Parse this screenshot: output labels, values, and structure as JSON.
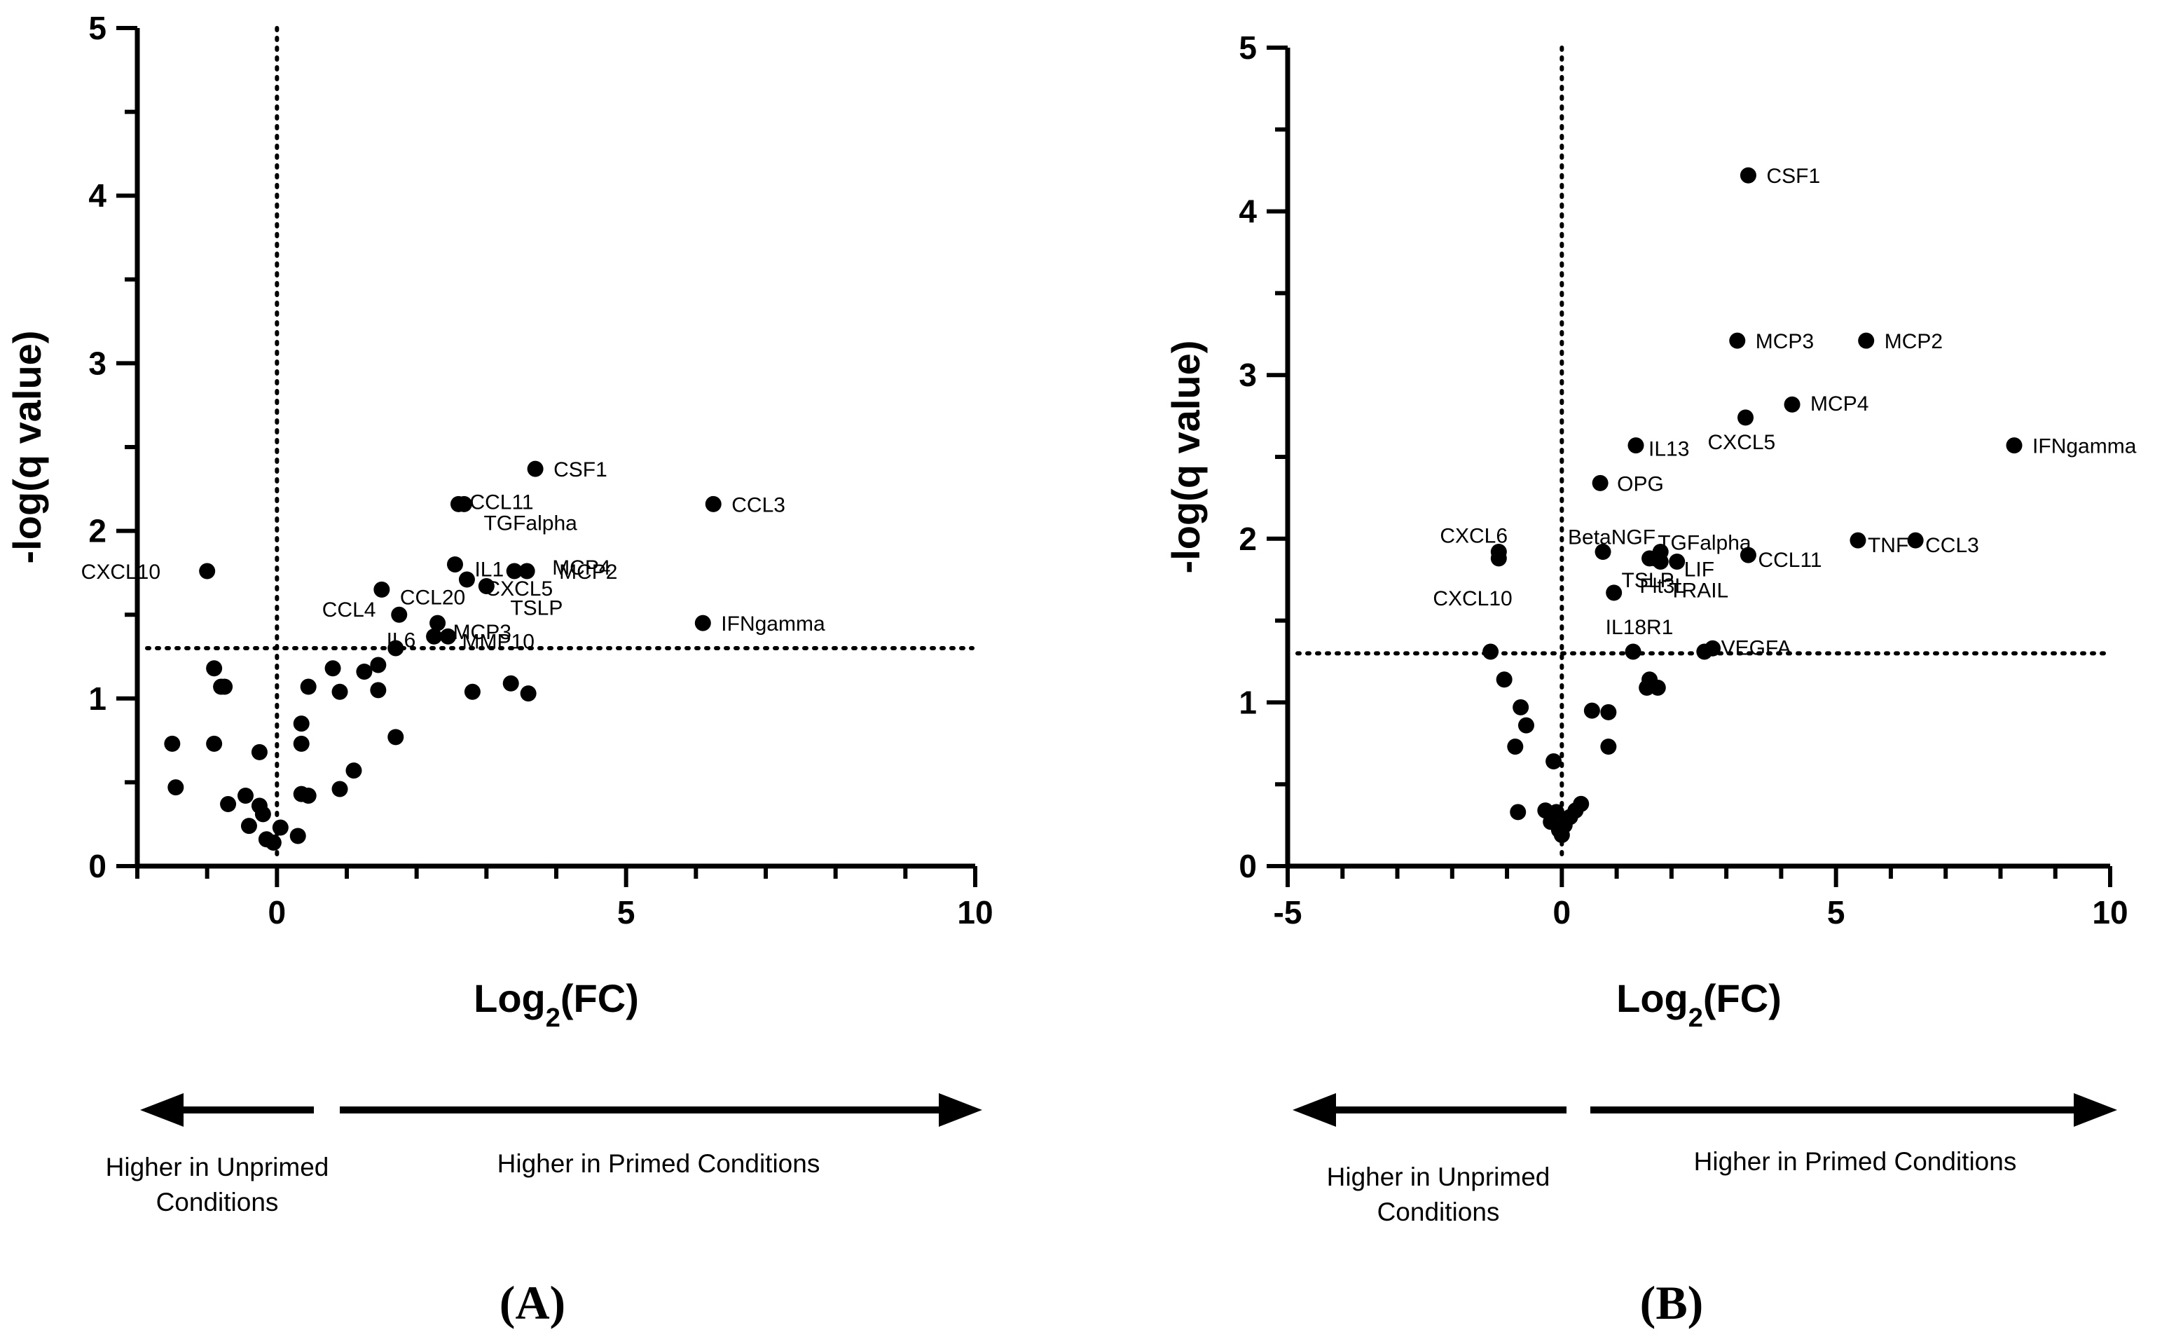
{
  "colors": {
    "ink": "#000000",
    "background": "#ffffff"
  },
  "chart_data": [
    {
      "type": "scatter",
      "panel": "(A)",
      "xlabel_main": "Log",
      "xlabel_sub": "2",
      "xlabel_tail": "(FC)",
      "ylabel": "-log(q value)",
      "xlim": [
        -2,
        10
      ],
      "ylim": [
        0,
        5
      ],
      "xticks": [
        0,
        5,
        10
      ],
      "yticks": [
        0,
        1,
        2,
        3,
        4,
        5
      ],
      "threshold_y": 1.3,
      "ref_x": 0,
      "arrow_left_text": [
        "Higher in Unprimed",
        "Conditions"
      ],
      "arrow_right_text": [
        "Higher in Primed Conditions"
      ],
      "points": [
        {
          "x": 3.7,
          "y": 2.37,
          "label": "CSF1"
        },
        {
          "x": 6.25,
          "y": 2.16,
          "label": "CCL3"
        },
        {
          "x": 2.6,
          "y": 2.16,
          "label": "CCL11"
        },
        {
          "x": 2.68,
          "y": 2.16,
          "label": "TGFalpha"
        },
        {
          "x": -1.0,
          "y": 1.76,
          "label": "CXCL10"
        },
        {
          "x": 2.55,
          "y": 1.8,
          "label": "IL1"
        },
        {
          "x": 3.4,
          "y": 1.76,
          "label": "MCP4"
        },
        {
          "x": 3.58,
          "y": 1.76,
          "label": "MCP2"
        },
        {
          "x": 2.72,
          "y": 1.71,
          "label": "CXCL5"
        },
        {
          "x": 3.0,
          "y": 1.67,
          "label": "TSLP"
        },
        {
          "x": 1.5,
          "y": 1.65,
          "label": "CCL20"
        },
        {
          "x": 1.75,
          "y": 1.5,
          "label": "CCL4"
        },
        {
          "x": 2.3,
          "y": 1.45,
          "label": "MCP3"
        },
        {
          "x": 6.1,
          "y": 1.45,
          "label": "IFNgamma"
        },
        {
          "x": 2.25,
          "y": 1.37,
          "label": "IL6"
        },
        {
          "x": 2.45,
          "y": 1.37,
          "label": "MMP10"
        },
        {
          "x": 1.7,
          "y": 1.3
        },
        {
          "x": 1.45,
          "y": 1.2
        },
        {
          "x": 1.25,
          "y": 1.16
        },
        {
          "x": 0.8,
          "y": 1.18
        },
        {
          "x": 0.45,
          "y": 1.07
        },
        {
          "x": 0.9,
          "y": 1.04
        },
        {
          "x": 1.45,
          "y": 1.05
        },
        {
          "x": 2.8,
          "y": 1.04
        },
        {
          "x": 3.35,
          "y": 1.09
        },
        {
          "x": 3.6,
          "y": 1.03
        },
        {
          "x": -0.9,
          "y": 1.18
        },
        {
          "x": -0.8,
          "y": 1.07
        },
        {
          "x": -0.75,
          "y": 1.07
        },
        {
          "x": 0.35,
          "y": 0.85
        },
        {
          "x": 0.35,
          "y": 0.73
        },
        {
          "x": 1.7,
          "y": 0.77
        },
        {
          "x": -1.5,
          "y": 0.73
        },
        {
          "x": -0.9,
          "y": 0.73
        },
        {
          "x": -0.25,
          "y": 0.68
        },
        {
          "x": 1.1,
          "y": 0.57
        },
        {
          "x": -1.45,
          "y": 0.47
        },
        {
          "x": 0.9,
          "y": 0.46
        },
        {
          "x": 0.35,
          "y": 0.43
        },
        {
          "x": 0.45,
          "y": 0.42
        },
        {
          "x": -0.45,
          "y": 0.42
        },
        {
          "x": -0.7,
          "y": 0.37
        },
        {
          "x": -0.25,
          "y": 0.36
        },
        {
          "x": -0.2,
          "y": 0.31
        },
        {
          "x": -0.4,
          "y": 0.24
        },
        {
          "x": 0.05,
          "y": 0.23
        },
        {
          "x": -0.15,
          "y": 0.16
        },
        {
          "x": -0.05,
          "y": 0.14
        },
        {
          "x": 0.3,
          "y": 0.18
        }
      ]
    },
    {
      "type": "scatter",
      "panel": "(B)",
      "xlabel_main": "Log",
      "xlabel_sub": "2",
      "xlabel_tail": "(FC)",
      "ylabel": "-log(q value)",
      "xlim": [
        -5,
        10
      ],
      "ylim": [
        0,
        5
      ],
      "xticks": [
        -5,
        0,
        5,
        10
      ],
      "yticks": [
        0,
        1,
        2,
        3,
        4,
        5
      ],
      "threshold_y": 1.3,
      "ref_x": 0,
      "arrow_left_text": [
        "Higher in Unprimed",
        "Conditions"
      ],
      "arrow_right_text": [
        "Higher in Primed Conditions"
      ],
      "points": [
        {
          "x": 3.4,
          "y": 4.22,
          "label": "CSF1"
        },
        {
          "x": 3.2,
          "y": 3.21,
          "label": "MCP3"
        },
        {
          "x": 5.55,
          "y": 3.21,
          "label": "MCP2"
        },
        {
          "x": 4.2,
          "y": 2.82,
          "label": "MCP4"
        },
        {
          "x": 3.35,
          "y": 2.74,
          "label": "CXCL5"
        },
        {
          "x": 8.25,
          "y": 2.57,
          "label": "IFNgamma"
        },
        {
          "x": 1.35,
          "y": 2.57,
          "label": "IL13"
        },
        {
          "x": 0.7,
          "y": 2.34,
          "label": "OPG"
        },
        {
          "x": -1.15,
          "y": 1.92,
          "label": "CXCL6"
        },
        {
          "x": -1.15,
          "y": 1.88,
          "label": "CXCL10"
        },
        {
          "x": 0.75,
          "y": 1.92,
          "label": "BetaNGF"
        },
        {
          "x": 1.8,
          "y": 1.92,
          "label": "TGFalpha"
        },
        {
          "x": 1.6,
          "y": 1.88,
          "label": "TSLP"
        },
        {
          "x": 1.7,
          "y": 1.88,
          "label": "Flt3L"
        },
        {
          "x": 2.1,
          "y": 1.86,
          "label": "LIF"
        },
        {
          "x": 1.8,
          "y": 1.86,
          "label": "TRAIL"
        },
        {
          "x": 3.4,
          "y": 1.9,
          "label": "CCL11"
        },
        {
          "x": 5.4,
          "y": 1.99,
          "label": "TNF"
        },
        {
          "x": 6.45,
          "y": 1.99,
          "label": "CCL3"
        },
        {
          "x": 0.95,
          "y": 1.67,
          "label": "IL18R1"
        },
        {
          "x": 2.75,
          "y": 1.33,
          "label": "VEGFA"
        },
        {
          "x": 2.6,
          "y": 1.31
        },
        {
          "x": 1.3,
          "y": 1.31
        },
        {
          "x": -1.3,
          "y": 1.31
        },
        {
          "x": -1.05,
          "y": 1.14
        },
        {
          "x": 1.6,
          "y": 1.14
        },
        {
          "x": 1.55,
          "y": 1.09
        },
        {
          "x": 1.75,
          "y": 1.09
        },
        {
          "x": -0.75,
          "y": 0.97
        },
        {
          "x": 0.55,
          "y": 0.95
        },
        {
          "x": 0.85,
          "y": 0.94
        },
        {
          "x": -0.65,
          "y": 0.86
        },
        {
          "x": -0.85,
          "y": 0.73
        },
        {
          "x": 0.85,
          "y": 0.73
        },
        {
          "x": -0.15,
          "y": 0.64
        },
        {
          "x": 0.35,
          "y": 0.38
        },
        {
          "x": 0.25,
          "y": 0.34
        },
        {
          "x": -0.3,
          "y": 0.34
        },
        {
          "x": -0.1,
          "y": 0.33
        },
        {
          "x": -0.8,
          "y": 0.33
        },
        {
          "x": 0.15,
          "y": 0.3
        },
        {
          "x": -0.2,
          "y": 0.27
        },
        {
          "x": 0.05,
          "y": 0.25
        },
        {
          "x": -0.05,
          "y": 0.22
        },
        {
          "x": 0.0,
          "y": 0.19
        }
      ]
    }
  ]
}
